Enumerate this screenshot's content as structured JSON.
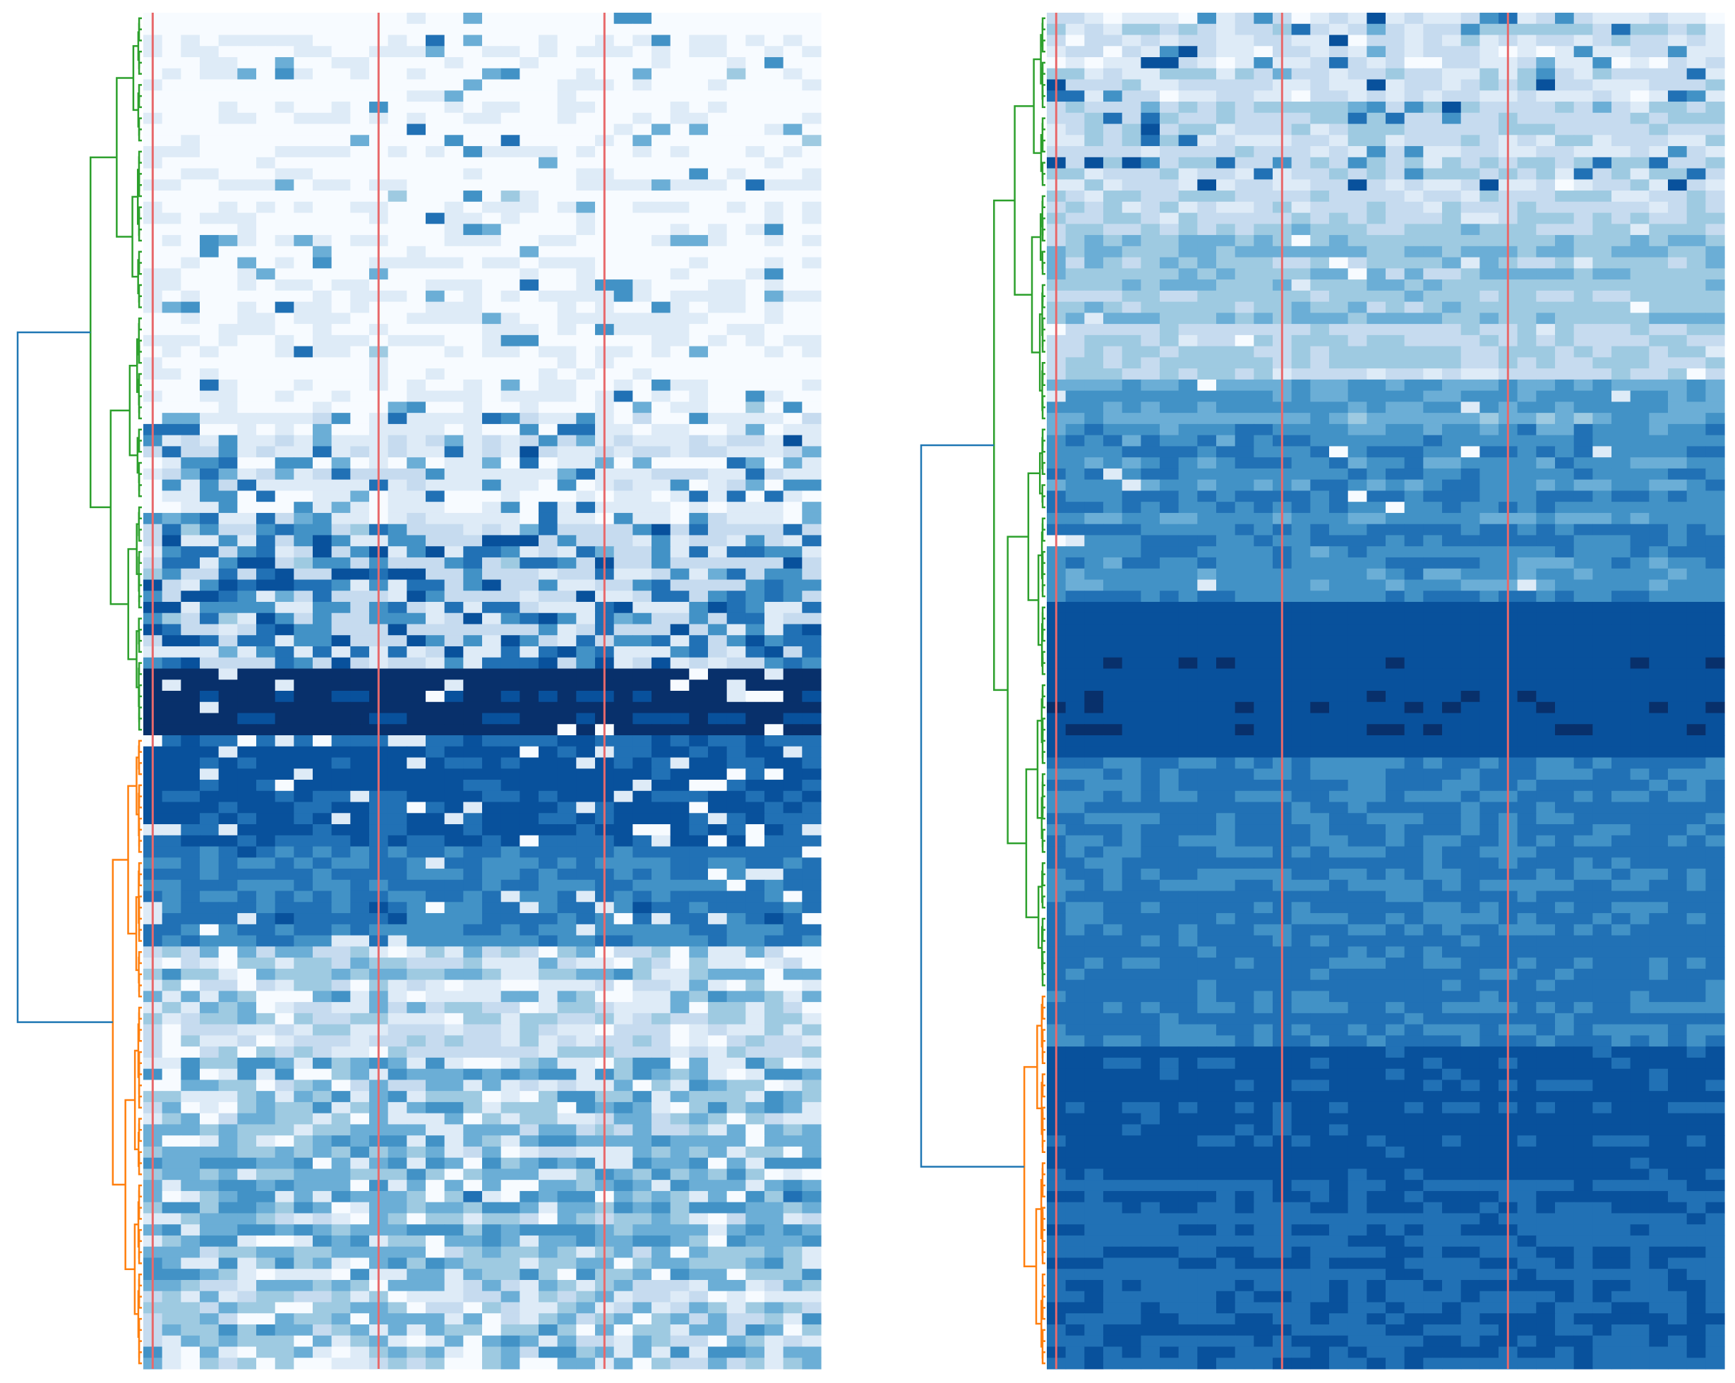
{
  "figure": {
    "background": "#ffffff"
  },
  "chart_data": [
    {
      "type": "heatmap",
      "title": "",
      "xlabel": "",
      "ylabel": "",
      "columns": 36,
      "colormap": "Blues",
      "value_range": [
        0,
        1
      ],
      "grid": false,
      "column_group_separators_after": [
        0,
        12,
        24
      ],
      "separator_color": "#e8696b",
      "row_bands": [
        {
          "rows": 36,
          "level": 0.04,
          "spread": 0.1,
          "speck": 0.06,
          "cluster": "green"
        },
        {
          "rows": 10,
          "level": 0.12,
          "spread": 0.18,
          "speck": 0.25,
          "cluster": "green"
        },
        {
          "rows": 13,
          "level": 0.2,
          "spread": 0.18,
          "speck": 0.45,
          "cluster": "green"
        },
        {
          "rows": 6,
          "level": 0.96,
          "spread": 0.06,
          "speck": 0.05,
          "cluster": "green"
        },
        {
          "rows": 10,
          "level": 0.82,
          "spread": 0.12,
          "speck": 0.1,
          "cluster": "orange"
        },
        {
          "rows": 9,
          "level": 0.7,
          "spread": 0.18,
          "speck": 0.08,
          "cluster": "orange"
        },
        {
          "rows": 6,
          "level": 0.4,
          "spread": 0.3,
          "speck": 0.45,
          "cluster": "orange"
        },
        {
          "rows": 4,
          "level": 0.3,
          "spread": 0.2,
          "speck": 0.25,
          "cluster": "orange"
        },
        {
          "rows": 6,
          "level": 0.45,
          "spread": 0.35,
          "speck": 0.35,
          "cluster": "orange"
        },
        {
          "rows": 13,
          "level": 0.48,
          "spread": 0.28,
          "speck": 0.18,
          "cluster": "orange"
        },
        {
          "rows": 9,
          "level": 0.42,
          "spread": 0.35,
          "speck": 0.35,
          "cluster": "orange"
        }
      ],
      "dendrogram": {
        "side": "left",
        "root_color": "#1f77b4",
        "clusters": [
          {
            "name": "green",
            "color": "#2ca02c",
            "rows": 65
          },
          {
            "name": "orange",
            "color": "#ff7f0e",
            "rows": 57
          }
        ]
      },
      "seed": 11
    },
    {
      "type": "heatmap",
      "title": "",
      "xlabel": "",
      "ylabel": "",
      "columns": 36,
      "colormap": "Blues",
      "value_range": [
        0,
        1
      ],
      "grid": false,
      "column_group_separators_after": [
        0,
        12,
        24
      ],
      "separator_color": "#e8696b",
      "row_bands": [
        {
          "rows": 6,
          "level": 0.18,
          "spread": 0.28,
          "speck": 0.1
        },
        {
          "rows": 10,
          "level": 0.24,
          "spread": 0.28,
          "speck": 0.1
        },
        {
          "rows": 4,
          "level": 0.32,
          "spread": 0.22,
          "speck": 0.05
        },
        {
          "rows": 8,
          "level": 0.38,
          "spread": 0.2,
          "speck": 0.05
        },
        {
          "rows": 5,
          "level": 0.3,
          "spread": 0.18,
          "speck": 0.05
        },
        {
          "rows": 4,
          "level": 0.56,
          "spread": 0.18,
          "speck": 0.02
        },
        {
          "rows": 16,
          "level": 0.64,
          "spread": 0.2,
          "speck": 0.02
        },
        {
          "rows": 14,
          "level": 0.91,
          "spread": 0.05,
          "speck": 0.0
        },
        {
          "rows": 26,
          "level": 0.7,
          "spread": 0.1,
          "speck": 0.0
        },
        {
          "rows": 12,
          "level": 0.83,
          "spread": 0.08,
          "speck": 0.0
        },
        {
          "rows": 17,
          "level": 0.8,
          "spread": 0.1,
          "speck": 0.0
        }
      ],
      "dendrogram": {
        "side": "left",
        "root_color": "#1f77b4",
        "clusters": [
          {
            "name": "green",
            "color": "#2ca02c",
            "rows": 88
          },
          {
            "name": "orange",
            "color": "#ff7f0e",
            "rows": 34
          }
        ]
      },
      "seed": 29
    }
  ]
}
